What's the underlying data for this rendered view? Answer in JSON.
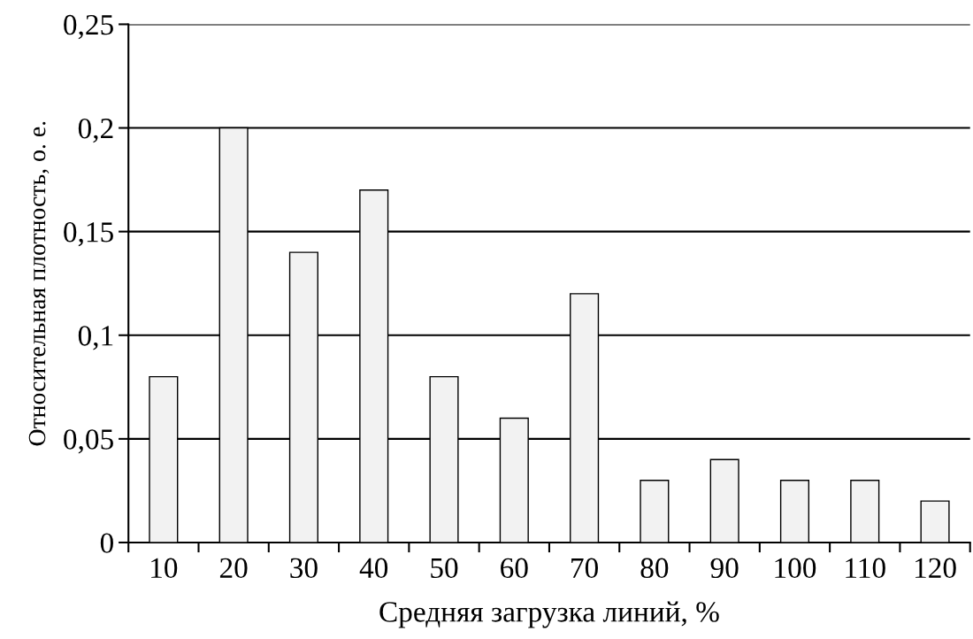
{
  "chart_data": {
    "type": "bar",
    "xlabel": "Средняя загрузка линий, %",
    "ylabel": "Относительная плотность, о. е.",
    "categories": [
      "10",
      "20",
      "30",
      "40",
      "50",
      "60",
      "70",
      "80",
      "90",
      "100",
      "110",
      "120"
    ],
    "values": [
      0.08,
      0.2,
      0.14,
      0.17,
      0.08,
      0.06,
      0.12,
      0.03,
      0.04,
      0.03,
      0.03,
      0.02
    ],
    "color": "#f2f2f2",
    "ylim": [
      0,
      0.25
    ],
    "yticks": [
      0,
      {
        "value": 0.05,
        "label": "0,05"
      },
      {
        "value": 0.1,
        "label": "0,1"
      },
      {
        "value": 0.15,
        "label": "0,15"
      },
      {
        "value": 0.2,
        "label": "0,2"
      },
      {
        "value": 0.25,
        "label": "0,25"
      }
    ],
    "grid": "y"
  }
}
